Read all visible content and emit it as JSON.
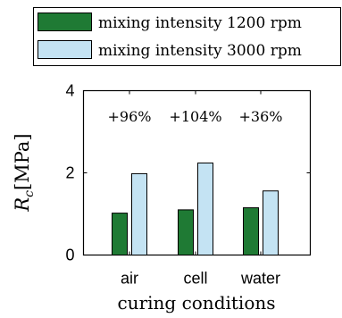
{
  "chart_data": {
    "type": "bar",
    "categories": [
      "air",
      "cell",
      "water"
    ],
    "series": [
      {
        "name": "mixing intensity 1200 rpm",
        "values": [
          1.02,
          1.1,
          1.15
        ],
        "color": "#1f7a34"
      },
      {
        "name": "mixing intensity 3000 rpm",
        "values": [
          1.98,
          2.24,
          1.56
        ],
        "color": "#c4e3f3"
      }
    ],
    "annotations": [
      "+96%",
      "+104%",
      "+36%"
    ],
    "xlabel": "curing conditions",
    "ylabel_main": "R",
    "ylabel_sub": "c",
    "ylabel_unit": "[MPa]",
    "yticks": [
      "0",
      "2",
      "4"
    ],
    "ylim": [
      0,
      4
    ],
    "legend_position": "top",
    "grid": false
  }
}
